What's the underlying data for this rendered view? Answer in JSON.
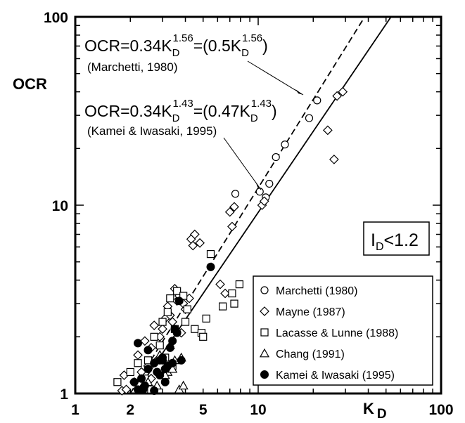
{
  "chart_data": {
    "type": "scatter",
    "x_scale": "log",
    "y_scale": "log",
    "xlim": [
      1,
      100
    ],
    "ylim": [
      1,
      100
    ],
    "x_ticks": [
      {
        "value": 1,
        "label": "1"
      },
      {
        "value": 2,
        "label": "2"
      },
      {
        "value": 5,
        "label": "5"
      },
      {
        "value": 10,
        "label": "10"
      },
      {
        "value": 100,
        "label": "100"
      }
    ],
    "y_ticks": [
      {
        "value": 1,
        "label": "1"
      },
      {
        "value": 10,
        "label": "10"
      },
      {
        "value": 100,
        "label": "100"
      }
    ],
    "xlabel": {
      "main": "K",
      "sub": "D"
    },
    "ylabel": "OCR",
    "grid": false,
    "legend_position": "bottom-right",
    "inset_label": {
      "main": "I",
      "sub": "D",
      "rest": "<1.2"
    },
    "lines": [
      {
        "style": "dashed",
        "coef": 0.34,
        "exp": 1.56,
        "eq_pre": "OCR=0.34K",
        "eq_sub": "D",
        "eq_sup": "1.56",
        "eq_mid": "=(0.5K",
        "eq_sub2": "D",
        "eq_sup2": "1.56",
        "eq_end": ")",
        "citation": "(Marchetti, 1980)"
      },
      {
        "style": "solid",
        "coef": 0.34,
        "exp": 1.43,
        "eq_pre": "OCR=0.34K",
        "eq_sub": "D",
        "eq_sup": "1.43",
        "eq_mid": "=(0.47K",
        "eq_sub2": "D",
        "eq_sup2": "1.43",
        "eq_end": ")",
        "citation": "(Kamei & Iwasaki, 1995)"
      }
    ],
    "series": [
      {
        "name": "Marchetti (1980)",
        "marker": "circle-open",
        "points": [
          [
            12.5,
            18
          ],
          [
            14,
            21
          ],
          [
            19,
            29
          ],
          [
            21,
            36
          ],
          [
            7.5,
            11.5
          ],
          [
            10.2,
            11.8
          ],
          [
            11,
            11
          ],
          [
            11.5,
            13
          ]
        ]
      },
      {
        "name": "Mayne (1987)",
        "marker": "diamond-open",
        "points": [
          [
            1.8,
            1
          ],
          [
            1.9,
            1.05
          ],
          [
            1.85,
            1.25
          ],
          [
            2.1,
            1.15
          ],
          [
            2.3,
            1.3
          ],
          [
            2.5,
            1.4
          ],
          [
            2.2,
            1.6
          ],
          [
            2.6,
            1.75
          ],
          [
            2.4,
            1.9
          ],
          [
            2.9,
            2
          ],
          [
            3,
            2.2
          ],
          [
            2.7,
            2.3
          ],
          [
            3.1,
            2.5
          ],
          [
            3.3,
            2.6
          ],
          [
            3.2,
            2.9
          ],
          [
            3.6,
            3.1
          ],
          [
            3.7,
            3.3
          ],
          [
            3.5,
            3.6
          ],
          [
            3.9,
            3
          ],
          [
            4,
            2.8
          ],
          [
            4.2,
            3.2
          ],
          [
            4.3,
            6.6
          ],
          [
            4.5,
            7
          ],
          [
            4.4,
            6.1
          ],
          [
            4.8,
            6.3
          ],
          [
            6.2,
            3.8
          ],
          [
            6.6,
            3.4
          ],
          [
            7,
            9.2
          ],
          [
            7.4,
            9.8
          ],
          [
            7.2,
            7.7
          ],
          [
            10.5,
            10
          ],
          [
            10.8,
            10.5
          ],
          [
            27,
            38
          ],
          [
            29,
            40
          ],
          [
            24,
            25
          ],
          [
            26,
            17.5
          ],
          [
            3.4,
            2.4
          ],
          [
            2.8,
            1.5
          ],
          [
            3.8,
            2.1
          ],
          [
            2.6,
            1.2
          ]
        ]
      },
      {
        "name": "Lacasse & Lunne (1988)",
        "marker": "square-open",
        "points": [
          [
            1.7,
            1.15
          ],
          [
            2,
            1.3
          ],
          [
            2.4,
            1.2
          ],
          [
            2.5,
            1.5
          ],
          [
            2.7,
            2
          ],
          [
            3,
            2.4
          ],
          [
            3.2,
            2.7
          ],
          [
            3.3,
            3.2
          ],
          [
            3.6,
            3.5
          ],
          [
            3.9,
            3.3
          ],
          [
            3.5,
            2.2
          ],
          [
            4,
            2.4
          ],
          [
            4.1,
            2.8
          ],
          [
            4.5,
            2.2
          ],
          [
            4.9,
            2.1
          ],
          [
            5,
            2
          ],
          [
            5.2,
            2.5
          ],
          [
            5.5,
            5.5
          ],
          [
            6.4,
            2.9
          ],
          [
            7.2,
            3.4
          ],
          [
            7.4,
            3
          ],
          [
            7.9,
            3.8
          ],
          [
            2.9,
            1.8
          ],
          [
            3.1,
            1.55
          ],
          [
            3.4,
            1.4
          ],
          [
            2.2,
            1.45
          ],
          [
            2.6,
            1.05
          ]
        ]
      },
      {
        "name": "Chang (1991)",
        "marker": "triangle-open",
        "points": [
          [
            2.3,
            1.05
          ],
          [
            2.5,
            1.15
          ],
          [
            2.8,
            1.1
          ],
          [
            3,
            1.25
          ],
          [
            3.2,
            1.3
          ],
          [
            3.4,
            1.35
          ],
          [
            3.7,
            1.05
          ],
          [
            3.9,
            1.1
          ],
          [
            3.5,
            1.5
          ],
          [
            2.9,
            1.6
          ],
          [
            3.3,
            1.8
          ],
          [
            3.8,
            1.55
          ],
          [
            3.1,
            1.25
          ]
        ]
      },
      {
        "name": "Kamei & Iwasaki (1995)",
        "marker": "circle-filled",
        "points": [
          [
            2.1,
            1.15
          ],
          [
            2.2,
            1.05
          ],
          [
            2.3,
            1.2
          ],
          [
            2.35,
            1.05
          ],
          [
            2.4,
            1.1
          ],
          [
            2.5,
            1.35
          ],
          [
            2.7,
            1.45
          ],
          [
            2.8,
            1.3
          ],
          [
            2.9,
            1.5
          ],
          [
            3,
            1.55
          ],
          [
            3.1,
            1.35
          ],
          [
            3.2,
            1.4
          ],
          [
            3.3,
            1.75
          ],
          [
            3.4,
            1.9
          ],
          [
            3.5,
            2.2
          ],
          [
            3.6,
            2.1
          ],
          [
            3.7,
            3.1
          ],
          [
            3.4,
            1.45
          ],
          [
            3.1,
            1.15
          ],
          [
            2.9,
            1.25
          ],
          [
            2.7,
            1
          ],
          [
            2.5,
            1.7
          ],
          [
            2.2,
            1.85
          ],
          [
            3.8,
            1.5
          ],
          [
            5.5,
            4.7
          ],
          [
            3,
            1.5
          ]
        ]
      }
    ]
  }
}
